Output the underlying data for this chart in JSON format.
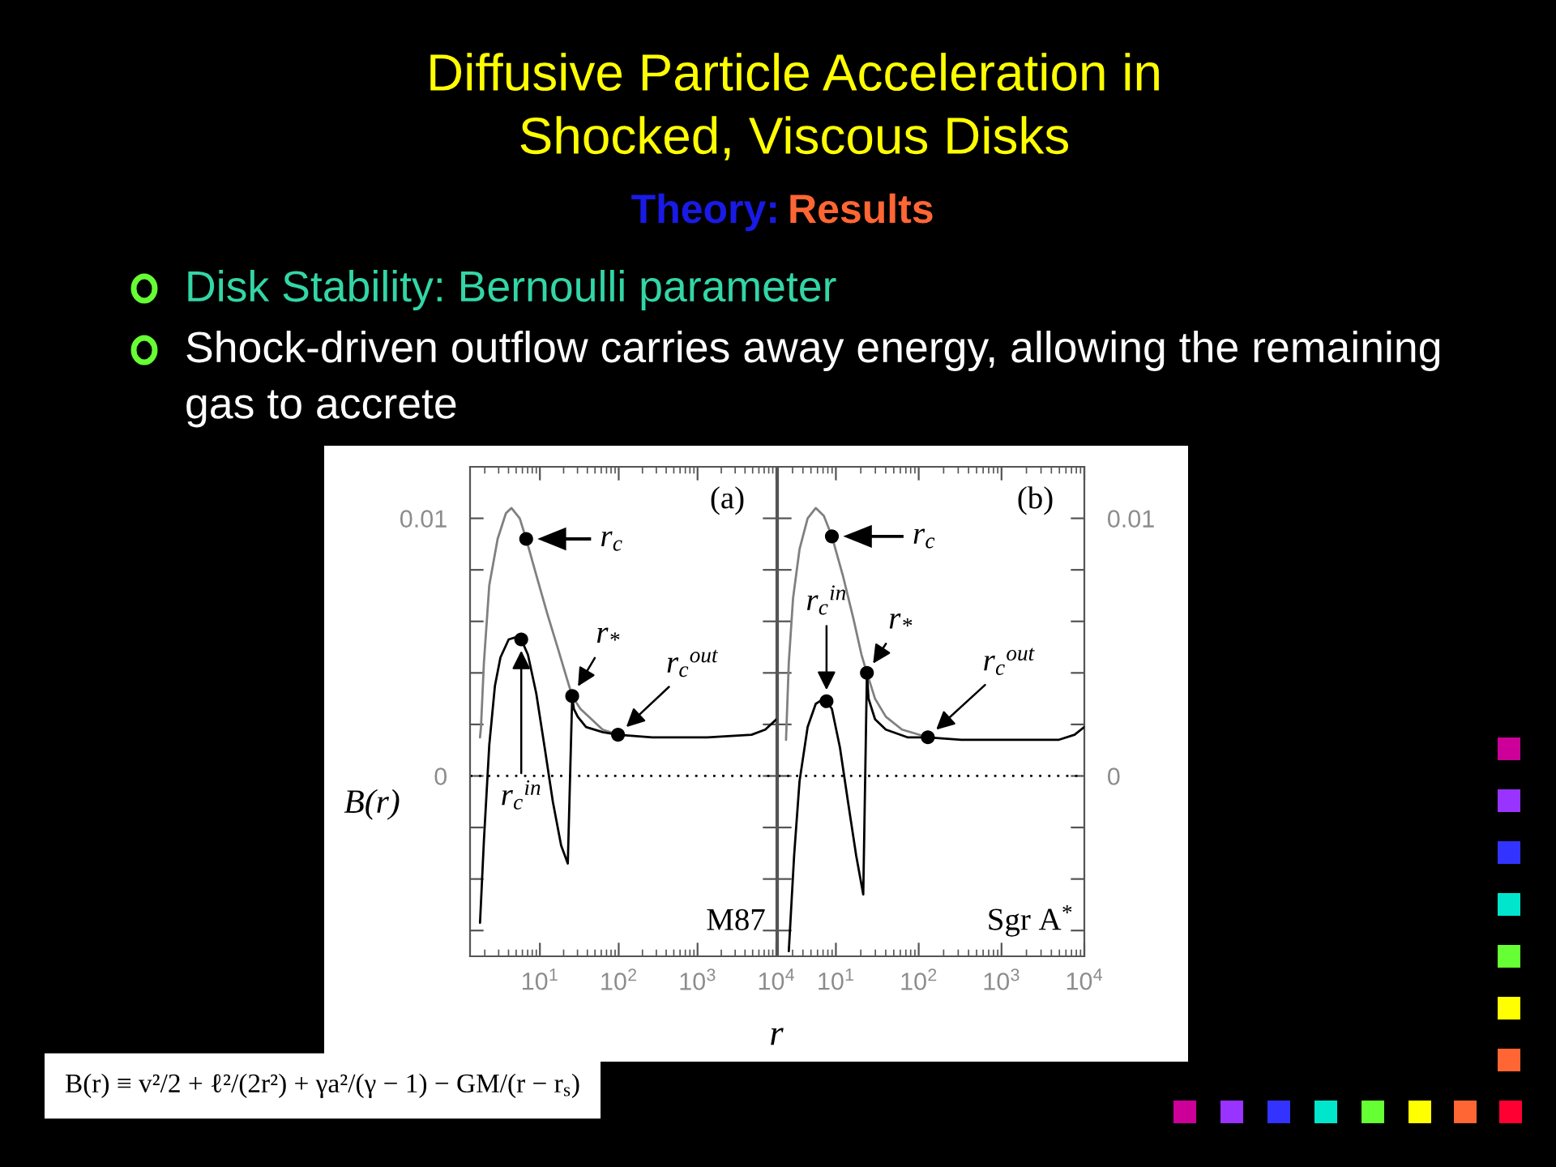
{
  "chart_data": [
    {
      "type": "other",
      "title": "Diffusive Particle Acceleration in\nShocked, Viscous Disks",
      "subtitle": "Theory: Results",
      "annotations": [
        "Disk Stability: Bernoulli parameter",
        "Shock-driven outflow carries away energy, allowing the remaining\ngas to accrete",
        "B(r) ≡ v²/2 + ℓ²/(2r²) + γa²/(γ − 1) − GM/(r − r$_{s}$)"
      ]
    },
    {
      "type": "line",
      "ylabel": "B(r)",
      "xlabel": "r",
      "log": "x",
      "xlim": [
        1.3,
        10000
      ],
      "ylim": [
        -0.007,
        0.012
      ],
      "xticks": [
        {
          "value": 10,
          "label": "10$^{1}$"
        },
        {
          "value": 100,
          "label": "10$^{2}$"
        },
        {
          "value": 1000,
          "label": "10$^{3}$"
        },
        {
          "value": 10000,
          "label": "10$^{4}$"
        }
      ],
      "yticks": [
        {
          "value": -0.006,
          "label": null
        },
        {
          "value": -0.004,
          "label": null
        },
        {
          "value": -0.002,
          "label": null
        },
        0,
        {
          "value": 0.002,
          "label": null
        },
        {
          "value": 0.004,
          "label": null
        },
        {
          "value": 0.006,
          "label": null
        },
        {
          "value": 0.008,
          "label": null
        },
        0.01
      ],
      "ref_lines": [
        {
          "axis": "y",
          "value": 0,
          "color": "#000000",
          "line_style": "dotted"
        }
      ],
      "series": [
        {
          "type": "line",
          "color": "#808080",
          "x": [
            1.74,
            1.79,
            1.95,
            2.28,
            2.91,
            3.71,
            4.36,
            5.55,
            6.7,
            9.0,
            12.4,
            17.1,
            21.9,
            25.7,
            32.7,
            45.2,
            62.4,
            98
          ],
          "values": [
            0.0015,
            0.0019,
            0.0044,
            0.0074,
            0.0092,
            0.0102,
            0.0104,
            0.01,
            0.0092,
            0.0078,
            0.0063,
            0.0049,
            0.0038,
            0.0031,
            0.0026,
            0.0022,
            0.0018,
            0.0016
          ]
        },
        {
          "type": "line",
          "color": "#000000",
          "x": [
            1.74,
            1.95,
            2.28,
            2.69,
            3.16,
            4.02,
            5.12,
            5.8,
            7.06,
            9.0,
            11.5,
            14.6,
            18.6,
            22.6,
            25.7,
            27.0,
            30.2,
            38.5,
            62.4,
            98,
            266,
            1334,
            4842,
            7244,
            10000
          ],
          "values": [
            -0.0057,
            -0.0025,
            0.0012,
            0.0035,
            0.0046,
            0.0053,
            0.0054,
            0.0053,
            0.0047,
            0.0032,
            0.0011,
            -0.001,
            -0.0027,
            -0.0034,
            0.0031,
            0.0026,
            0.0023,
            0.0019,
            0.0017,
            0.0016,
            0.0015,
            0.0015,
            0.0016,
            0.0018,
            0.0022
          ]
        },
        {
          "type": "scatter",
          "color": "#000000",
          "marker": "circle",
          "x": [
            6.7,
            5.8,
            25.7,
            98
          ],
          "values": [
            0.0092,
            0.0053,
            0.0031,
            0.0016
          ]
        }
      ],
      "annotations": [
        "(a)",
        "M87",
        {
          "text": "r$_{c}$",
          "x": 6.7,
          "y": 0.0092
        },
        {
          "text": "r$_{c}$$^{in}$",
          "x": 5.8,
          "y": 0.0053
        },
        {
          "text": "r$_{*}$",
          "x": 25.7,
          "y": 0.0031
        },
        {
          "text": "r$_{c}$$^{out}$",
          "x": 98,
          "y": 0.0016
        }
      ]
    },
    {
      "type": "line",
      "log": "x",
      "xlim": [
        2,
        10000
      ],
      "ylim": [
        -0.007,
        0.012
      ],
      "xticks": [
        {
          "value": 10,
          "label": "10$^{1}$"
        },
        {
          "value": 100,
          "label": "10$^{2}$"
        },
        {
          "value": 1000,
          "label": "10$^{3}$"
        },
        {
          "value": 10000,
          "label": "10$^{4}$"
        }
      ],
      "yticks": [
        {
          "value": -0.006,
          "label": null
        },
        {
          "value": -0.004,
          "label": null
        },
        {
          "value": -0.002,
          "label": null
        },
        0,
        {
          "value": 0.002,
          "label": null
        },
        {
          "value": 0.004,
          "label": null
        },
        {
          "value": 0.006,
          "label": null
        },
        {
          "value": 0.008,
          "label": null
        },
        0.01
      ],
      "ref_lines": [
        {
          "axis": "y",
          "value": 0,
          "color": "#000000",
          "line_style": "dotted"
        }
      ],
      "series": [
        {
          "type": "line",
          "color": "#808080",
          "x": [
            2.5,
            2.7,
            3.04,
            3.64,
            4.56,
            5.71,
            7.15,
            8.95,
            12.1,
            16.3,
            20.4,
            23.7,
            29.7,
            40.1,
            62.8,
            129
          ],
          "values": [
            0.0014,
            0.0044,
            0.0069,
            0.0088,
            0.01,
            0.0104,
            0.0101,
            0.0093,
            0.0078,
            0.0061,
            0.0047,
            0.004,
            0.003,
            0.0023,
            0.0018,
            0.0015
          ]
        },
        {
          "type": "line",
          "color": "#000000",
          "x": [
            2.7,
            3.13,
            3.64,
            4.56,
            5.71,
            7.15,
            7.71,
            8.95,
            11.2,
            14.0,
            17.6,
            21.4,
            23.7,
            24.8,
            29.7,
            40.1,
            73.1,
            129,
            327,
            1466,
            4864,
            7621,
            10000
          ],
          "values": [
            -0.0068,
            -0.0031,
            -0.0002,
            0.0019,
            0.0028,
            0.003,
            0.0029,
            0.0026,
            0.0011,
            -0.001,
            -0.0031,
            -0.0046,
            0.004,
            0.003,
            0.0022,
            0.0018,
            0.0015,
            0.0015,
            0.0014,
            0.0014,
            0.0014,
            0.0016,
            0.0019
          ]
        },
        {
          "type": "scatter",
          "color": "#000000",
          "marker": "circle",
          "x": [
            8.95,
            7.71,
            23.7,
            129
          ],
          "values": [
            0.0093,
            0.0029,
            0.004,
            0.0015
          ]
        }
      ],
      "annotations": [
        "(b)",
        "Sgr A$^{*}$",
        {
          "text": "r$_{c}$",
          "x": 8.95,
          "y": 0.0093
        },
        {
          "text": "r$_{c}$$^{in}$",
          "x": 7.71,
          "y": 0.0029
        },
        {
          "text": "r$_{*}$",
          "x": 23.7,
          "y": 0.004
        },
        {
          "text": "r$_{c}$$^{out}$",
          "x": 129,
          "y": 0.0015
        }
      ]
    }
  ]
}
